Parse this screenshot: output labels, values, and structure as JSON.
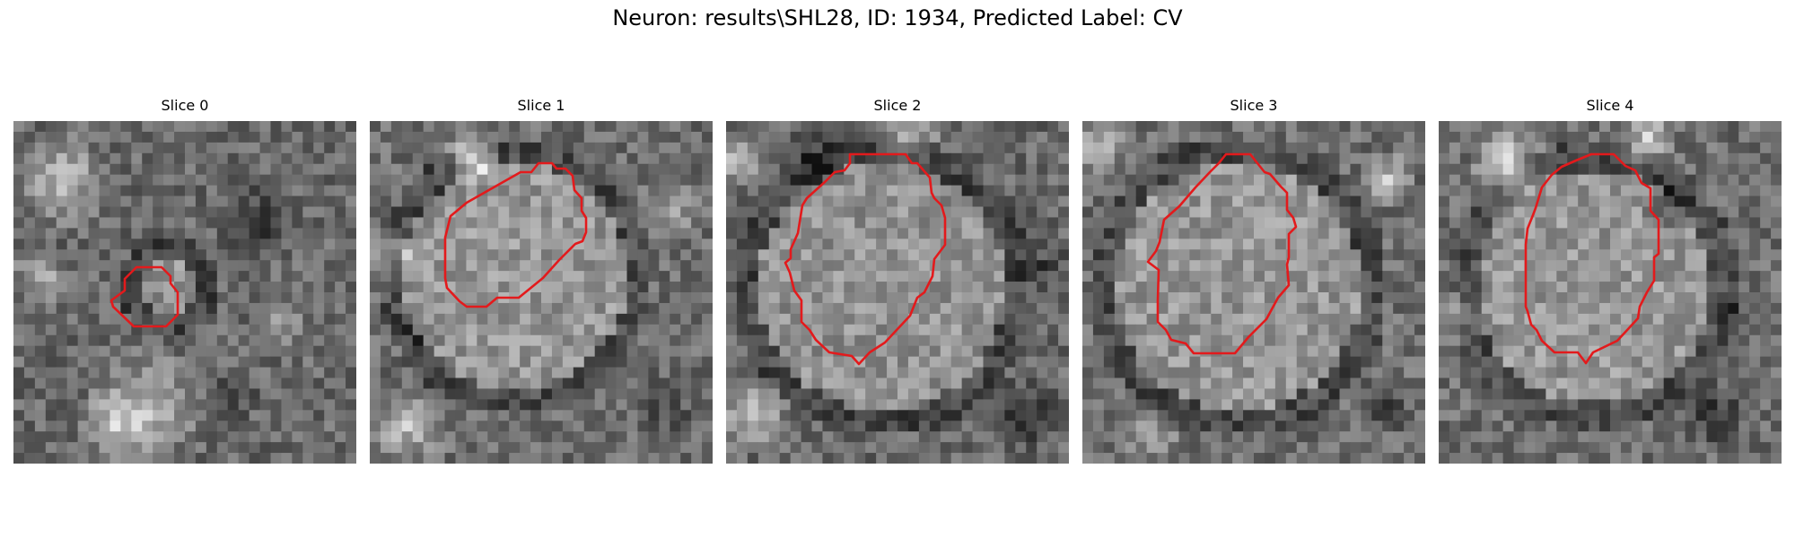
{
  "figure": {
    "title": "Neuron: results\\SHL28, ID: 1934, Predicted Label: CV"
  },
  "panels": [
    {
      "title": "Slice 0"
    },
    {
      "title": "Slice 1"
    },
    {
      "title": "Slice 2"
    },
    {
      "title": "Slice 3"
    },
    {
      "title": "Slice 4"
    }
  ],
  "contour_color": "#e31a1c"
}
